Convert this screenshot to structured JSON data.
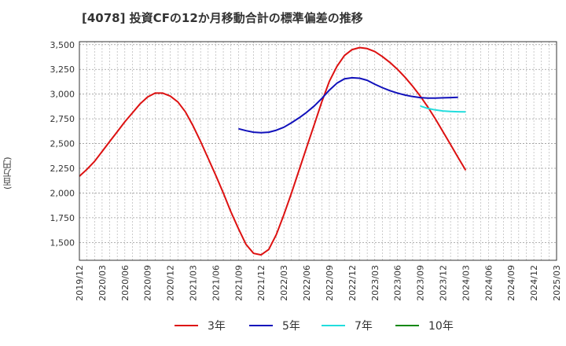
{
  "chart_data": {
    "type": "line",
    "title": "[4078]  投資CFの12か月移動合計の標準偏差の推移",
    "ylabel": "(百万円)",
    "xlabel": "",
    "ylim": [
      1320,
      3530
    ],
    "y_ticks": [
      1500,
      1750,
      2000,
      2250,
      2500,
      2750,
      3000,
      3250,
      3500
    ],
    "y_tick_labels": [
      "1,500",
      "1,750",
      "2,000",
      "2,250",
      "2,500",
      "2,750",
      "3,000",
      "3,250",
      "3,500"
    ],
    "x_tick_labels": [
      "2019/12",
      "2020/03",
      "2020/06",
      "2020/09",
      "2020/12",
      "2021/03",
      "2021/06",
      "2021/09",
      "2021/12",
      "2022/03",
      "2022/06",
      "2022/09",
      "2022/12",
      "2023/03",
      "2023/06",
      "2023/09",
      "2023/12",
      "2024/03",
      "2024/06",
      "2024/09",
      "2024/12",
      "2025/03"
    ],
    "grid": true,
    "legend_position": "bottom",
    "series": [
      {
        "name": "3年",
        "color": "#dd1111",
        "start_index": 0,
        "values": [
          2170,
          2240,
          2320,
          2420,
          2520,
          2620,
          2720,
          2810,
          2900,
          2970,
          3010,
          3010,
          2980,
          2920,
          2820,
          2680,
          2520,
          2350,
          2180,
          2000,
          1810,
          1640,
          1480,
          1390,
          1375,
          1430,
          1580,
          1780,
          2000,
          2230,
          2460,
          2690,
          2920,
          3130,
          3280,
          3390,
          3450,
          3470,
          3460,
          3430,
          3380,
          3320,
          3250,
          3170,
          3080,
          2980,
          2870,
          2750,
          2620,
          2490,
          2360,
          2230
        ]
      },
      {
        "name": "5年",
        "color": "#1111bb",
        "start_index": 21,
        "values": [
          2650,
          2630,
          2615,
          2610,
          2615,
          2635,
          2665,
          2710,
          2760,
          2815,
          2880,
          2955,
          3040,
          3110,
          3155,
          3165,
          3160,
          3140,
          3100,
          3065,
          3035,
          3010,
          2990,
          2975,
          2965,
          2960,
          2960,
          2962,
          2965,
          2968
        ]
      },
      {
        "name": "7年",
        "color": "#22dddd",
        "start_index": 45,
        "values": [
          2880,
          2855,
          2840,
          2830,
          2825,
          2822,
          2820
        ]
      },
      {
        "name": "10年",
        "color": "#118811",
        "start_index": 0,
        "values": []
      }
    ]
  }
}
